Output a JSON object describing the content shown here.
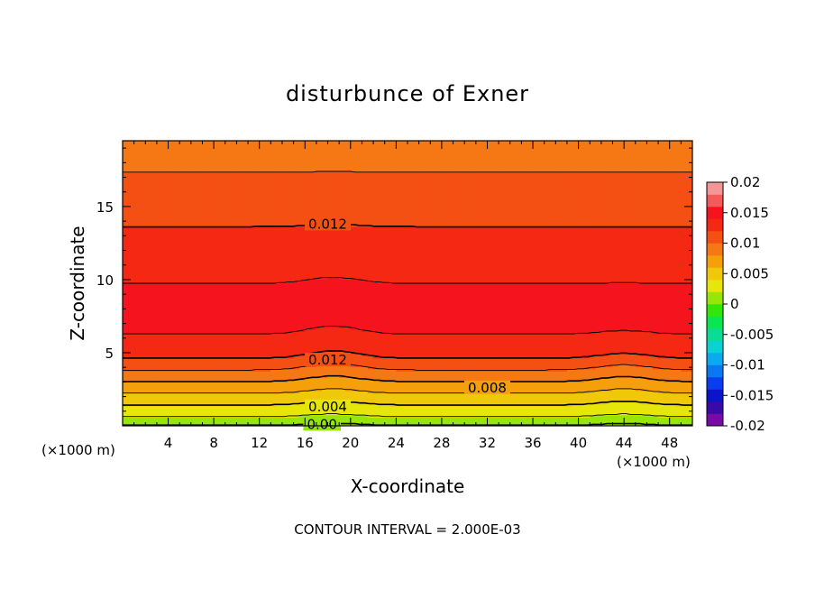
{
  "chart_data": {
    "type": "heatmap",
    "title": "disturbunce of Exner",
    "xlabel": "X-coordinate",
    "ylabel": "Z-coordinate",
    "x_unit": "(×1000 m)",
    "x_unit_right": "(×1000 m)",
    "footer": "CONTOUR INTERVAL = 2.000E-03",
    "xlim": [
      0,
      50
    ],
    "ylim": [
      0,
      19.5
    ],
    "xticks": [
      "4",
      "8",
      "12",
      "16",
      "20",
      "24",
      "28",
      "32",
      "36",
      "40",
      "44",
      "48"
    ],
    "xtick_values": [
      4,
      8,
      12,
      16,
      20,
      24,
      28,
      32,
      36,
      40,
      44,
      48
    ],
    "yticks": [
      "5",
      "10",
      "15"
    ],
    "ytick_values": [
      5,
      10,
      15
    ],
    "colorbar": {
      "labels": [
        "0.02",
        "0.015",
        "0.01",
        "0.005",
        "0",
        "-0.005",
        "-0.01",
        "-0.015",
        "-0.02"
      ],
      "values": [
        0.02,
        0.015,
        0.01,
        0.005,
        0,
        -0.005,
        -0.01,
        -0.015,
        -0.02
      ],
      "range": [
        -0.02,
        0.02
      ],
      "colors": [
        "#7a0aa8",
        "#3a0aa8",
        "#0a14c8",
        "#0a3cf0",
        "#0a78f0",
        "#0aaaf0",
        "#0ad2d2",
        "#0adc96",
        "#0ae650",
        "#32e60a",
        "#96e60a",
        "#e6e60a",
        "#f0c80a",
        "#f5a00a",
        "#f57814",
        "#f55014",
        "#f52814",
        "#f5141e",
        "#f55a5a",
        "#f59696"
      ]
    },
    "contour_labels": [
      {
        "text": "0.012",
        "x": 18,
        "z": 13.8
      },
      {
        "text": "0.012",
        "x": 18,
        "z": 4.5
      },
      {
        "text": "0.008",
        "x": 32,
        "z": 2.6
      },
      {
        "text": "0.004",
        "x": 18,
        "z": 1.3
      },
      {
        "text": "0.00",
        "x": 17.5,
        "z": 0.1
      }
    ],
    "profile": {
      "z": [
        0,
        0.3,
        0.6,
        1.0,
        1.4,
        1.8,
        2.2,
        2.6,
        3.0,
        3.4,
        3.8,
        4.2,
        4.6,
        5.0,
        5.5,
        6.0,
        7.0,
        8.0,
        9.0,
        10.0,
        11.0,
        12.0,
        13.0,
        14.0,
        15.0,
        16.0,
        17.0,
        18.0,
        19.0,
        19.5
      ],
      "value": [
        0.0,
        0.001,
        0.002,
        0.003,
        0.004,
        0.005,
        0.006,
        0.007,
        0.008,
        0.009,
        0.01,
        0.011,
        0.012,
        0.0125,
        0.013,
        0.0138,
        0.0146,
        0.0148,
        0.0145,
        0.0138,
        0.0133,
        0.0128,
        0.0123,
        0.0118,
        0.0113,
        0.0107,
        0.0102,
        0.0096,
        0.009,
        0.0088
      ]
    },
    "contour_levels": [
      0.0,
      0.002,
      0.004,
      0.006,
      0.008,
      0.01,
      0.012,
      0.014,
      0.016,
      0.018
    ]
  }
}
